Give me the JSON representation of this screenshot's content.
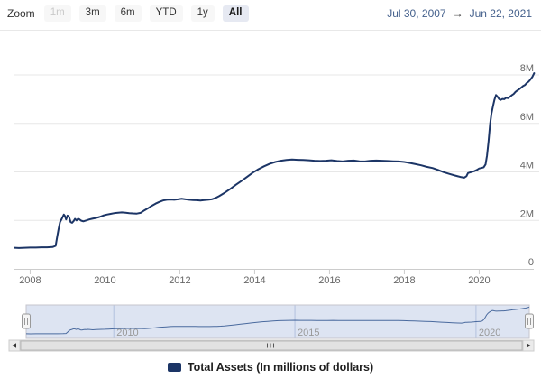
{
  "toolbar": {
    "zoom_label": "Zoom",
    "buttons": [
      {
        "label": "1m",
        "state": "disabled"
      },
      {
        "label": "3m",
        "state": "normal"
      },
      {
        "label": "6m",
        "state": "normal"
      },
      {
        "label": "YTD",
        "state": "normal"
      },
      {
        "label": "1y",
        "state": "normal"
      },
      {
        "label": "All",
        "state": "selected"
      }
    ],
    "range": {
      "from": "Jul 30, 2007",
      "arrow": "→",
      "to": "Jun 22, 2021"
    }
  },
  "legend": {
    "label": "Total Assets (In millions of dollars)",
    "swatch_color": "#1c3566"
  },
  "colors": {
    "series_line": "#1c3566",
    "navigator_line": "#4a6a9e",
    "navigator_mask": "#6685c2",
    "navigator_grid": "#c8d2e6",
    "selected_button_bg": "#e6e9f2",
    "grid_line": "#e7e7e7",
    "axis_line": "#cccccc",
    "axis_label": "#666666",
    "nav_label": "#999999",
    "range_text": "#44608c",
    "scrollbar_track": "#eeeeee",
    "scrollbar_thumb": "#e2e2e2"
  },
  "chart_data": {
    "type": "line",
    "title": "",
    "xlabel": "",
    "ylabel": "",
    "grid": "horizontal",
    "legend_position": "bottom-center",
    "x_axis": {
      "range": [
        2007.58,
        2021.47
      ],
      "ticks": [
        2008,
        2010,
        2012,
        2014,
        2016,
        2018,
        2020
      ],
      "labels": [
        "2008",
        "2010",
        "2012",
        "2014",
        "2016",
        "2018",
        "2020"
      ]
    },
    "y_axis": {
      "range": [
        0,
        9.4
      ],
      "unit": "M (millions of dollars)",
      "ticks": [
        {
          "value": 0,
          "label": "0"
        },
        {
          "value": 2,
          "label": "2M"
        },
        {
          "value": 4,
          "label": "4M"
        },
        {
          "value": 6,
          "label": "6M"
        },
        {
          "value": 8,
          "label": "8M"
        }
      ]
    },
    "navigator": {
      "tick_years": [
        2010,
        2015,
        2020
      ],
      "labels": [
        "2010",
        "2015",
        "2020"
      ],
      "selected_range": "all"
    },
    "series": [
      {
        "name": "Total Assets (In millions of dollars)",
        "color": "#1c3566",
        "points": [
          [
            2007.58,
            0.87
          ],
          [
            2007.7,
            0.86
          ],
          [
            2007.85,
            0.87
          ],
          [
            2008.0,
            0.88
          ],
          [
            2008.15,
            0.88
          ],
          [
            2008.3,
            0.89
          ],
          [
            2008.45,
            0.89
          ],
          [
            2008.6,
            0.9
          ],
          [
            2008.68,
            0.95
          ],
          [
            2008.72,
            1.3
          ],
          [
            2008.76,
            1.65
          ],
          [
            2008.8,
            1.93
          ],
          [
            2008.85,
            2.08
          ],
          [
            2008.9,
            2.24
          ],
          [
            2008.93,
            2.18
          ],
          [
            2008.96,
            2.04
          ],
          [
            2009.0,
            2.2
          ],
          [
            2009.04,
            2.14
          ],
          [
            2009.08,
            1.93
          ],
          [
            2009.12,
            1.9
          ],
          [
            2009.16,
            1.97
          ],
          [
            2009.2,
            2.06
          ],
          [
            2009.24,
            2.0
          ],
          [
            2009.28,
            2.07
          ],
          [
            2009.32,
            2.04
          ],
          [
            2009.36,
            1.99
          ],
          [
            2009.42,
            1.96
          ],
          [
            2009.5,
            2.0
          ],
          [
            2009.58,
            2.04
          ],
          [
            2009.66,
            2.07
          ],
          [
            2009.75,
            2.1
          ],
          [
            2009.85,
            2.14
          ],
          [
            2009.95,
            2.2
          ],
          [
            2010.05,
            2.24
          ],
          [
            2010.15,
            2.27
          ],
          [
            2010.25,
            2.3
          ],
          [
            2010.35,
            2.32
          ],
          [
            2010.45,
            2.33
          ],
          [
            2010.55,
            2.32
          ],
          [
            2010.65,
            2.3
          ],
          [
            2010.75,
            2.29
          ],
          [
            2010.85,
            2.28
          ],
          [
            2010.95,
            2.31
          ],
          [
            2011.05,
            2.41
          ],
          [
            2011.15,
            2.5
          ],
          [
            2011.25,
            2.6
          ],
          [
            2011.35,
            2.69
          ],
          [
            2011.45,
            2.76
          ],
          [
            2011.55,
            2.82
          ],
          [
            2011.65,
            2.85
          ],
          [
            2011.75,
            2.86
          ],
          [
            2011.85,
            2.85
          ],
          [
            2011.95,
            2.87
          ],
          [
            2012.05,
            2.89
          ],
          [
            2012.15,
            2.87
          ],
          [
            2012.25,
            2.85
          ],
          [
            2012.35,
            2.84
          ],
          [
            2012.45,
            2.83
          ],
          [
            2012.55,
            2.82
          ],
          [
            2012.65,
            2.84
          ],
          [
            2012.75,
            2.85
          ],
          [
            2012.85,
            2.87
          ],
          [
            2012.95,
            2.92
          ],
          [
            2013.05,
            3.0
          ],
          [
            2013.2,
            3.14
          ],
          [
            2013.35,
            3.3
          ],
          [
            2013.5,
            3.47
          ],
          [
            2013.65,
            3.63
          ],
          [
            2013.8,
            3.8
          ],
          [
            2013.95,
            3.97
          ],
          [
            2014.1,
            4.11
          ],
          [
            2014.25,
            4.23
          ],
          [
            2014.4,
            4.33
          ],
          [
            2014.55,
            4.41
          ],
          [
            2014.7,
            4.46
          ],
          [
            2014.85,
            4.49
          ],
          [
            2015.0,
            4.51
          ],
          [
            2015.15,
            4.5
          ],
          [
            2015.3,
            4.49
          ],
          [
            2015.45,
            4.48
          ],
          [
            2015.6,
            4.46
          ],
          [
            2015.75,
            4.45
          ],
          [
            2015.9,
            4.46
          ],
          [
            2016.05,
            4.48
          ],
          [
            2016.2,
            4.45
          ],
          [
            2016.35,
            4.43
          ],
          [
            2016.5,
            4.46
          ],
          [
            2016.65,
            4.47
          ],
          [
            2016.8,
            4.44
          ],
          [
            2016.95,
            4.43
          ],
          [
            2017.1,
            4.46
          ],
          [
            2017.25,
            4.47
          ],
          [
            2017.4,
            4.46
          ],
          [
            2017.55,
            4.45
          ],
          [
            2017.7,
            4.44
          ],
          [
            2017.85,
            4.43
          ],
          [
            2018.0,
            4.41
          ],
          [
            2018.15,
            4.37
          ],
          [
            2018.3,
            4.32
          ],
          [
            2018.45,
            4.27
          ],
          [
            2018.6,
            4.21
          ],
          [
            2018.75,
            4.16
          ],
          [
            2018.9,
            4.08
          ],
          [
            2019.05,
            3.99
          ],
          [
            2019.2,
            3.92
          ],
          [
            2019.35,
            3.85
          ],
          [
            2019.5,
            3.79
          ],
          [
            2019.6,
            3.76
          ],
          [
            2019.66,
            3.82
          ],
          [
            2019.7,
            3.95
          ],
          [
            2019.74,
            3.97
          ],
          [
            2019.8,
            4.0
          ],
          [
            2019.87,
            4.03
          ],
          [
            2019.94,
            4.08
          ],
          [
            2020.0,
            4.14
          ],
          [
            2020.06,
            4.16
          ],
          [
            2020.12,
            4.19
          ],
          [
            2020.17,
            4.31
          ],
          [
            2020.21,
            4.67
          ],
          [
            2020.25,
            5.25
          ],
          [
            2020.29,
            5.96
          ],
          [
            2020.33,
            6.42
          ],
          [
            2020.37,
            6.72
          ],
          [
            2020.41,
            6.98
          ],
          [
            2020.45,
            7.17
          ],
          [
            2020.49,
            7.1
          ],
          [
            2020.53,
            7.01
          ],
          [
            2020.57,
            6.97
          ],
          [
            2020.62,
            7.01
          ],
          [
            2020.67,
            7.0
          ],
          [
            2020.72,
            7.06
          ],
          [
            2020.77,
            7.04
          ],
          [
            2020.82,
            7.1
          ],
          [
            2020.87,
            7.16
          ],
          [
            2020.92,
            7.21
          ],
          [
            2020.97,
            7.3
          ],
          [
            2021.02,
            7.36
          ],
          [
            2021.07,
            7.41
          ],
          [
            2021.12,
            7.47
          ],
          [
            2021.17,
            7.54
          ],
          [
            2021.22,
            7.58
          ],
          [
            2021.27,
            7.66
          ],
          [
            2021.32,
            7.72
          ],
          [
            2021.37,
            7.81
          ],
          [
            2021.42,
            7.92
          ],
          [
            2021.47,
            8.07
          ]
        ]
      }
    ]
  }
}
